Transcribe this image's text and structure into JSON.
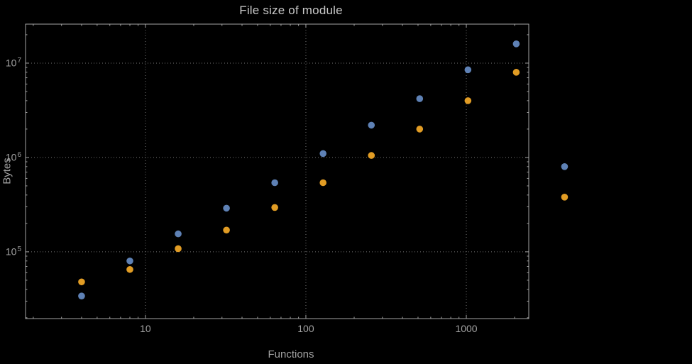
{
  "chart_data": {
    "type": "scatter",
    "title": "File size of module",
    "xlabel": "Functions",
    "ylabel": "Bytes",
    "x_scale": "log",
    "y_scale": "log",
    "grid": "dotted-major",
    "legend": "none",
    "xlim": [
      1.79,
      2450
    ],
    "ylim": [
      19600,
      25900000
    ],
    "x": [
      4,
      8,
      16,
      32,
      64,
      128,
      256,
      512,
      1024,
      2048,
      4096
    ],
    "series": [
      {
        "name": "blue",
        "color": "#5e81b5",
        "values": [
          34000,
          80000,
          155000,
          290000,
          540000,
          1100000,
          2200000,
          4200000,
          8500000,
          16000000,
          800000
        ]
      },
      {
        "name": "orange",
        "color": "#e19c24",
        "values": [
          48000,
          65000,
          108000,
          170000,
          295000,
          540000,
          1050000,
          2000000,
          4000000,
          8000000,
          380000
        ]
      }
    ],
    "x_ticks": [
      {
        "label": "10",
        "value": 10
      },
      {
        "label": "100",
        "value": 100
      },
      {
        "label": "1000",
        "value": 1000
      }
    ],
    "y_ticks": [
      {
        "mantissa": "10",
        "exponent": "5",
        "value": 100000
      },
      {
        "mantissa": "10",
        "exponent": "6",
        "value": 1000000
      },
      {
        "mantissa": "10",
        "exponent": "7",
        "value": 10000000
      }
    ],
    "colors": {
      "background": "#000000",
      "frame": "#a3a3a3",
      "grid": "#757575",
      "title": "#c8c8c8",
      "labels": "#a2a2a2"
    }
  }
}
